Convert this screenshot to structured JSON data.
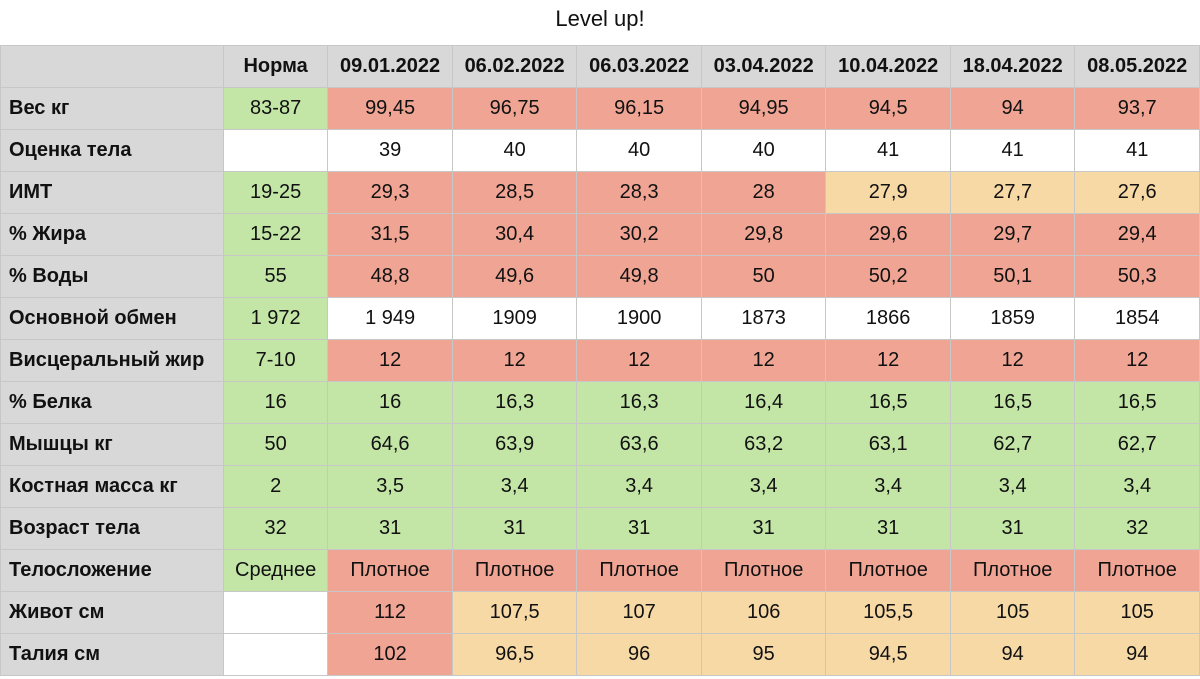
{
  "title": "Level up!",
  "header": [
    "",
    "Норма",
    "09.01.2022",
    "06.02.2022",
    "06.03.2022",
    "03.04.2022",
    "10.04.2022",
    "18.04.2022",
    "08.05.2022"
  ],
  "rows": [
    {
      "label": "Вес кг",
      "norm": "83-87",
      "values": [
        "99,45",
        "96,75",
        "96,15",
        "94,95",
        "94,5",
        "94",
        "93,7"
      ]
    },
    {
      "label": "Оценка тела",
      "norm": "",
      "values": [
        "39",
        "40",
        "40",
        "40",
        "41",
        "41",
        "41"
      ]
    },
    {
      "label": "ИМТ",
      "norm": "19-25",
      "values": [
        "29,3",
        "28,5",
        "28,3",
        "28",
        "27,9",
        "27,7",
        "27,6"
      ]
    },
    {
      "label": "% Жира",
      "norm": "15-22",
      "values": [
        "31,5",
        "30,4",
        "30,2",
        "29,8",
        "29,6",
        "29,7",
        "29,4"
      ]
    },
    {
      "label": "% Воды",
      "norm": "55",
      "values": [
        "48,8",
        "49,6",
        "49,8",
        "50",
        "50,2",
        "50,1",
        "50,3"
      ]
    },
    {
      "label": "Основной обмен",
      "norm": "1 972",
      "values": [
        "1 949",
        "1909",
        "1900",
        "1873",
        "1866",
        "1859",
        "1854"
      ]
    },
    {
      "label": "Висцеральный жир",
      "norm": "7-10",
      "values": [
        "12",
        "12",
        "12",
        "12",
        "12",
        "12",
        "12"
      ]
    },
    {
      "label": "% Белка",
      "norm": "16",
      "values": [
        "16",
        "16,3",
        "16,3",
        "16,4",
        "16,5",
        "16,5",
        "16,5"
      ]
    },
    {
      "label": "Мышцы кг",
      "norm": "50",
      "values": [
        "64,6",
        "63,9",
        "63,6",
        "63,2",
        "63,1",
        "62,7",
        "62,7"
      ]
    },
    {
      "label": "Костная масса кг",
      "norm": "2",
      "values": [
        "3,5",
        "3,4",
        "3,4",
        "3,4",
        "3,4",
        "3,4",
        "3,4"
      ]
    },
    {
      "label": "Возраст тела",
      "norm": "32",
      "values": [
        "31",
        "31",
        "31",
        "31",
        "31",
        "31",
        "32"
      ]
    },
    {
      "label": "Телосложение",
      "norm": "Среднее",
      "values": [
        "Плотное",
        "Плотное",
        "Плотное",
        "Плотное",
        "Плотное",
        "Плотное",
        "Плотное"
      ]
    },
    {
      "label": "Живот см",
      "norm": "",
      "values": [
        "112",
        "107,5",
        "107",
        "106",
        "105,5",
        "105",
        "105"
      ]
    },
    {
      "label": "Талия см",
      "norm": "",
      "values": [
        "102",
        "96,5",
        "96",
        "95",
        "94,5",
        "94",
        "94"
      ]
    }
  ],
  "colors": {
    "header_gray": "#d8d8d8",
    "green": "#c3e6a7",
    "red": "#f0a594",
    "yellow": "#f7d9a6",
    "white": "#ffffff"
  }
}
